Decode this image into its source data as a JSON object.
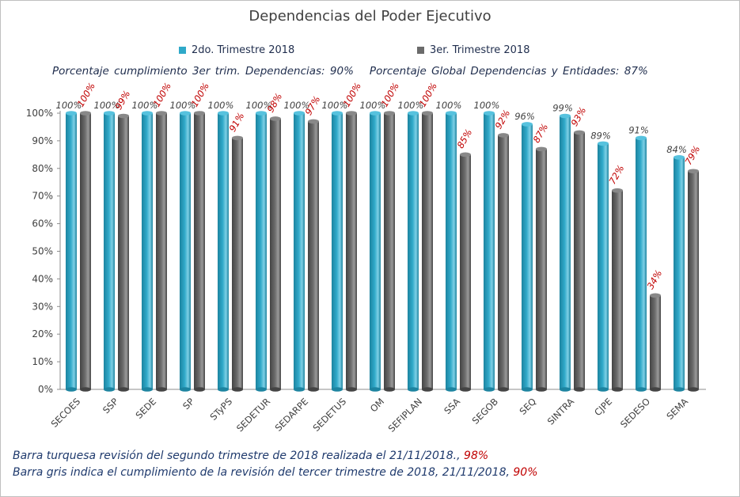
{
  "chart_data": {
    "type": "bar",
    "title": "Dependencias del Poder Ejecutivo",
    "categories": [
      "SECOES",
      "SSP",
      "SEDE",
      "SP",
      "STyPS",
      "SEDETUR",
      "SEDARPE",
      "SEDETUS",
      "OM",
      "SEFIPLAN",
      "SSA",
      "SEGOB",
      "SEQ",
      "SINTRA",
      "CJPE",
      "SEDESO",
      "SEMA"
    ],
    "series": [
      {
        "name": "2do. Trimestre 2018",
        "color": "#2fa9c9",
        "label_color": "#404040",
        "values": [
          100,
          100,
          100,
          100,
          100,
          100,
          100,
          100,
          100,
          100,
          100,
          100,
          96,
          99,
          89,
          91,
          84
        ],
        "labels": [
          "100%",
          "100%",
          "100%",
          "100%",
          "100%",
          "100%",
          "100%",
          "100%",
          "100%",
          "100%",
          "100%",
          "100%",
          "96%",
          "99%",
          "89%",
          "91%",
          "84%"
        ]
      },
      {
        "name": "3er. Trimestre 2018",
        "color": "#6b6b6b",
        "label_color": "#c00000",
        "values": [
          100,
          99,
          100,
          100,
          91,
          98,
          97,
          100,
          100,
          100,
          85,
          92,
          87,
          93,
          72,
          34,
          79
        ],
        "labels": [
          "100%",
          "99%",
          "100%",
          "100%",
          "91%",
          "98%",
          "97%",
          "100%",
          "100%",
          "100%",
          "85%",
          "92%",
          "87%",
          "93%",
          "72%",
          "34%",
          "79%"
        ]
      }
    ],
    "ylim": [
      0,
      100
    ],
    "yticks": [
      "0%",
      "10%",
      "20%",
      "30%",
      "40%",
      "50%",
      "60%",
      "70%",
      "80%",
      "90%",
      "100%"
    ],
    "xlabel": "",
    "ylabel": "",
    "grid": false,
    "legend_position": "top"
  },
  "summary": {
    "left": "Porcentaje  cumplimiento  3er trim. Dependencias:  90%",
    "right": "Porcentaje  Global  Dependencias  y  Entidades:  87%"
  },
  "notes": {
    "line1_text": "Barra turquesa  revisión  del segundo  trimestre  de 2018 realizada el  21/11/2018.,",
    "line1_value": "98%",
    "line2_text": "Barra gris indica el cumplimiento  de la revisión del tercer trimestre de 2018,  21/11/2018,",
    "line2_value": "90%"
  }
}
